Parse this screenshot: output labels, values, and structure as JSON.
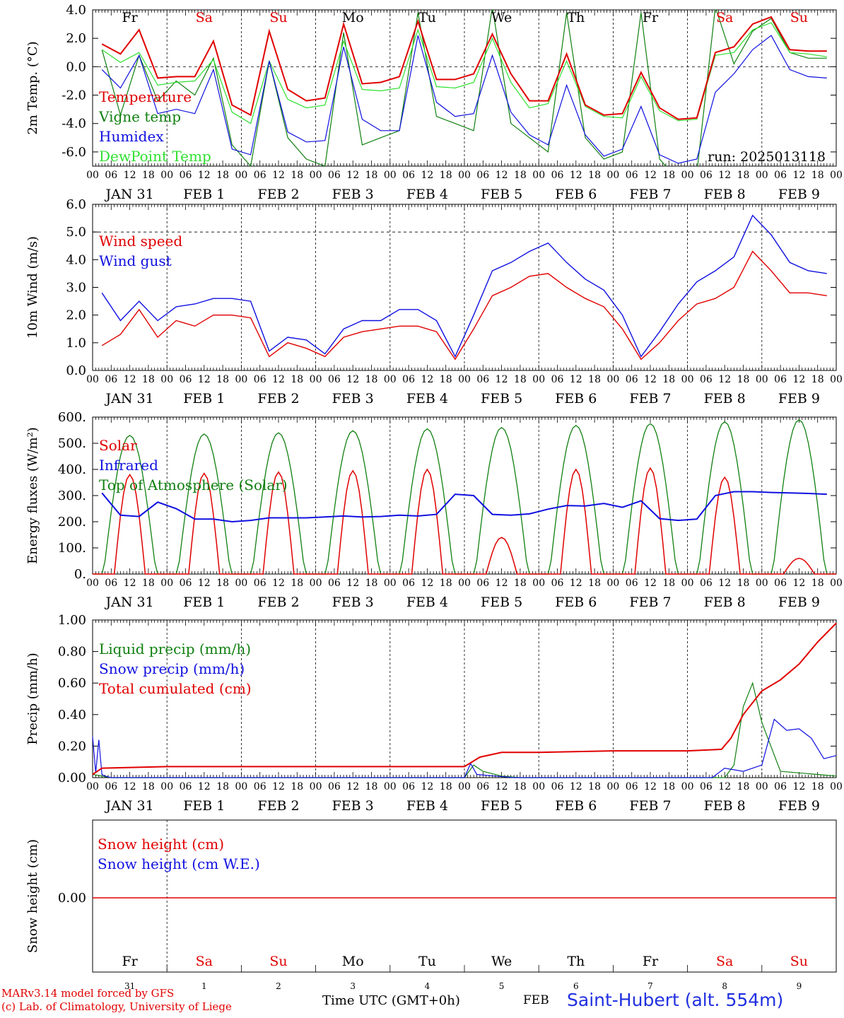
{
  "x_axis": {
    "hour_ticks": [
      "00",
      "06",
      "12",
      "18"
    ],
    "date_labels": [
      "JAN 31",
      "FEB  1",
      "FEB  2",
      "FEB  3",
      "FEB  4",
      "FEB  5",
      "FEB  6",
      "FEB  7",
      "FEB  8",
      "FEB  9"
    ],
    "weekdays": [
      "Fr",
      "Sa",
      "Su",
      "Mo",
      "Tu",
      "We",
      "Th",
      "Fr",
      "Sa",
      "Su"
    ],
    "weekday_weekend": [
      false,
      true,
      true,
      false,
      false,
      false,
      false,
      false,
      true,
      true
    ],
    "day_numbers": [
      "31",
      "1",
      "2",
      "3",
      "4",
      "5",
      "6",
      "7",
      "8",
      "9"
    ]
  },
  "colors": {
    "red": "#e00000",
    "green": "#108010",
    "blue": "#1010e0",
    "lightgreen": "#30e030",
    "weekend": "#e00000"
  },
  "footer": {
    "time_label": "Time UTC (GMT+0h)",
    "month_label": "FEB",
    "station": "Saint-Hubert (alt. 554m)",
    "credit1": "MARv3.14 model forced by GFS",
    "credit2": "(c) Lab. of Climatology, University of Liege"
  },
  "chart_data": [
    {
      "type": "line",
      "ylabel": "2m Temp. (°C)",
      "ylim": [
        -7,
        4
      ],
      "yticks": [
        "4.0",
        "2.0",
        "0.0",
        "-2.0",
        "-4.0",
        "-6.0"
      ],
      "ytick_values": [
        4,
        2,
        0,
        -2,
        -4,
        -6
      ],
      "hline": 0,
      "annotation": "run: 2025013118",
      "x_hours": [
        0,
        6,
        12,
        18,
        24,
        30,
        36,
        42,
        48,
        54,
        60,
        66,
        72,
        78,
        84,
        90,
        96,
        102,
        108,
        114,
        120,
        126,
        132,
        138,
        144,
        150,
        156,
        162,
        168,
        174,
        180,
        186,
        192,
        198,
        204,
        210,
        216,
        222,
        228,
        234
      ],
      "series": [
        {
          "name": "Temperature",
          "color": "red",
          "values": [
            1.6,
            0.9,
            2.6,
            -0.8,
            -0.7,
            -0.7,
            1.8,
            -2.7,
            -3.4,
            2.5,
            -1.6,
            -2.4,
            -2.2,
            3.0,
            -1.2,
            -1.1,
            -0.7,
            3.2,
            -0.9,
            -0.9,
            -0.5,
            2.3,
            -0.5,
            -2.4,
            -2.4,
            0.9,
            -2.7,
            -3.4,
            -3.3,
            -0.4,
            -2.9,
            -3.7,
            -3.6,
            1.0,
            1.4,
            3.0,
            3.5,
            1.2,
            1.1,
            1.1
          ]
        },
        {
          "name": "Vigne temp",
          "color": "green",
          "values": [
            1.2,
            -3.4,
            0.8,
            -2.4,
            -1.0,
            -2.0,
            0.6,
            -5.5,
            -7.0,
            0.4,
            -5.0,
            -6.5,
            -7.0,
            2.4,
            -5.5,
            -5.0,
            -4.5,
            3.8,
            -3.5,
            -4.0,
            -4.5,
            4.2,
            -4.0,
            -5.0,
            -6.0,
            3.8,
            -5.0,
            -6.5,
            -6.0,
            3.8,
            -6.5,
            -8.0,
            -7.5,
            4.2,
            0.2,
            2.5,
            3.4,
            1.0,
            0.6,
            0.6
          ]
        },
        {
          "name": "Humidex",
          "color": "blue",
          "values": [
            -0.2,
            -1.5,
            0.8,
            -3.3,
            -3.0,
            -3.3,
            -0.2,
            -5.8,
            -6.2,
            0.4,
            -4.6,
            -5.3,
            -5.2,
            1.4,
            -3.7,
            -4.5,
            -4.5,
            2.2,
            -2.5,
            -3.5,
            -3.3,
            0.8,
            -3.2,
            -4.8,
            -5.5,
            -1.3,
            -4.8,
            -6.3,
            -5.8,
            -2.8,
            -6.2,
            -6.8,
            -6.5,
            -1.8,
            -0.5,
            1.2,
            2.2,
            -0.2,
            -0.7,
            -0.8
          ]
        },
        {
          "name": "DewPoint Temp",
          "color": "lightgreen",
          "values": [
            1.2,
            0.3,
            1.0,
            -1.3,
            -1.1,
            -1.0,
            0.5,
            -3.2,
            -4.0,
            0.4,
            -2.3,
            -2.9,
            -2.7,
            1.8,
            -1.6,
            -1.7,
            -1.5,
            2.6,
            -1.4,
            -1.5,
            -1.1,
            2.0,
            -1.1,
            -2.9,
            -2.6,
            0.4,
            -2.8,
            -3.5,
            -3.6,
            -0.7,
            -3.1,
            -3.8,
            -3.7,
            0.8,
            1.0,
            2.6,
            3.1,
            1.0,
            0.9,
            0.7
          ]
        }
      ]
    },
    {
      "type": "line",
      "ylabel": "10m Wind (m/s)",
      "ylim": [
        0,
        6
      ],
      "yticks": [
        "6.0",
        "5.0",
        "4.0",
        "3.0",
        "2.0",
        "1.0",
        "0.0"
      ],
      "ytick_values": [
        6,
        5,
        4,
        3,
        2,
        1,
        0
      ],
      "hline": 5,
      "x_hours": [
        0,
        6,
        12,
        18,
        24,
        30,
        36,
        42,
        48,
        54,
        60,
        66,
        72,
        78,
        84,
        90,
        96,
        102,
        108,
        114,
        120,
        126,
        132,
        138,
        144,
        150,
        156,
        162,
        168,
        174,
        180,
        186,
        192,
        198,
        204,
        210,
        216,
        222,
        228,
        234
      ],
      "series": [
        {
          "name": "Wind speed",
          "color": "red",
          "values": [
            0.9,
            1.3,
            2.2,
            1.2,
            1.8,
            1.6,
            2.0,
            2.0,
            1.9,
            0.5,
            1.0,
            0.8,
            0.5,
            1.2,
            1.4,
            1.5,
            1.6,
            1.6,
            1.4,
            0.4,
            1.5,
            2.7,
            3.0,
            3.4,
            3.5,
            3.0,
            2.6,
            2.3,
            1.5,
            0.4,
            1.0,
            1.8,
            2.4,
            2.6,
            3.0,
            4.3,
            3.6,
            2.8,
            2.8,
            2.7
          ]
        },
        {
          "name": "Wind gust",
          "color": "blue",
          "values": [
            2.8,
            1.8,
            2.5,
            1.8,
            2.3,
            2.4,
            2.6,
            2.6,
            2.5,
            0.7,
            1.2,
            1.1,
            0.6,
            1.5,
            1.8,
            1.8,
            2.2,
            2.2,
            1.8,
            0.5,
            2.0,
            3.6,
            3.9,
            4.3,
            4.6,
            3.9,
            3.3,
            2.9,
            2.0,
            0.5,
            1.4,
            2.4,
            3.2,
            3.6,
            4.1,
            5.6,
            4.9,
            3.9,
            3.6,
            3.5
          ]
        }
      ]
    },
    {
      "type": "line",
      "ylabel": "Energy fluxes (W/m²)",
      "ylim": [
        0,
        600
      ],
      "yticks": [
        "600.",
        "500.",
        "400.",
        "300.",
        "200.",
        "100.",
        "0."
      ],
      "ytick_values": [
        600,
        500,
        400,
        300,
        200,
        100,
        0
      ],
      "solar_peak": [
        380,
        385,
        390,
        395,
        400,
        140,
        400,
        405,
        370,
        60
      ],
      "toa_peak": [
        530,
        535,
        540,
        548,
        555,
        560,
        568,
        575,
        582,
        590
      ],
      "infrared": {
        "x_hours": [
          0,
          6,
          12,
          18,
          24,
          30,
          36,
          42,
          48,
          54,
          60,
          66,
          72,
          78,
          84,
          90,
          96,
          102,
          108,
          114,
          120,
          126,
          132,
          138,
          144,
          150,
          156,
          162,
          168,
          174,
          180,
          186,
          192,
          198,
          204,
          210,
          216,
          222,
          228,
          234
        ],
        "values": [
          310,
          225,
          220,
          275,
          250,
          210,
          210,
          200,
          205,
          215,
          215,
          215,
          218,
          222,
          218,
          220,
          225,
          222,
          228,
          305,
          300,
          228,
          225,
          230,
          248,
          262,
          260,
          270,
          255,
          280,
          212,
          205,
          210,
          300,
          315,
          315,
          312,
          310,
          308,
          305
        ]
      },
      "series": [
        {
          "name": "Solar",
          "color": "red"
        },
        {
          "name": "Infrared",
          "color": "blue"
        },
        {
          "name": "Top of Atmosphere (Solar)",
          "color": "green"
        }
      ]
    },
    {
      "type": "line",
      "ylabel": "Precip (mm/h)",
      "ylim": [
        0,
        1
      ],
      "yticks": [
        "1.00",
        "0.80",
        "0.60",
        "0.40",
        "0.20",
        "0.00"
      ],
      "ytick_values": [
        1,
        0.8,
        0.6,
        0.4,
        0.2,
        0
      ],
      "series": [
        {
          "name": "Liquid precip (mm/h)",
          "color": "green",
          "x_hours": [
            0,
            3,
            6,
            120,
            123,
            126,
            132,
            138,
            204,
            207,
            210,
            213,
            216,
            222,
            228,
            234,
            240
          ],
          "values": [
            0.02,
            0.01,
            0,
            0,
            0.08,
            0.04,
            0.01,
            0,
            0,
            0.08,
            0.45,
            0.6,
            0.35,
            0.04,
            0.03,
            0.02,
            0.01
          ]
        },
        {
          "name": "Snow precip (mm/h)",
          "color": "blue",
          "x_hours": [
            0,
            1,
            2,
            3,
            4,
            6,
            8,
            120,
            122,
            124,
            130,
            136,
            200,
            204,
            210,
            216,
            220,
            224,
            228,
            232,
            236,
            240
          ],
          "values": [
            0.26,
            0.03,
            0.24,
            0.02,
            0.01,
            0,
            0,
            0,
            0.09,
            0.02,
            0.01,
            0,
            0,
            0.06,
            0.04,
            0.08,
            0.37,
            0.3,
            0.31,
            0.25,
            0.12,
            0.14
          ]
        },
        {
          "name": "Total cumulated (cm)",
          "color": "red",
          "x_hours": [
            0,
            3,
            24,
            48,
            72,
            96,
            120,
            125,
            132,
            144,
            168,
            192,
            203,
            206,
            210,
            216,
            222,
            228,
            234,
            240
          ],
          "values": [
            0.02,
            0.06,
            0.07,
            0.07,
            0.07,
            0.07,
            0.07,
            0.13,
            0.16,
            0.16,
            0.17,
            0.17,
            0.18,
            0.25,
            0.4,
            0.55,
            0.62,
            0.72,
            0.86,
            0.98
          ]
        }
      ]
    },
    {
      "type": "line",
      "ylabel": "Snow height (cm)",
      "yticks": [
        "0.00"
      ],
      "ytick_values": [
        0
      ],
      "series": [
        {
          "name": "Snow height (cm)",
          "color": "red",
          "values": [
            0,
            0
          ]
        },
        {
          "name": "Snow height (cm W.E.)",
          "color": "blue",
          "values": [
            0,
            0
          ]
        }
      ]
    }
  ]
}
